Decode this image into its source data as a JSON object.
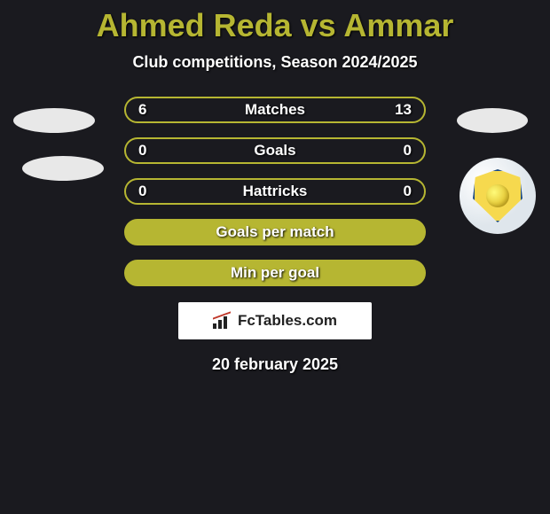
{
  "title": "Ahmed Reda vs Ammar",
  "subtitle": "Club competitions, Season 2024/2025",
  "rows": [
    {
      "label": "Matches",
      "left": "6",
      "right": "13",
      "filled": false
    },
    {
      "label": "Goals",
      "left": "0",
      "right": "0",
      "filled": false
    },
    {
      "label": "Hattricks",
      "left": "0",
      "right": "0",
      "filled": false
    },
    {
      "label": "Goals per match",
      "left": "",
      "right": "",
      "filled": true
    },
    {
      "label": "Min per goal",
      "left": "",
      "right": "",
      "filled": true
    }
  ],
  "branding": "FcTables.com",
  "date": "20 february 2025",
  "colors": {
    "accent": "#b6b632",
    "background": "#1a1a1f",
    "text": "#ffffff",
    "branding_bg": "#ffffff",
    "branding_text": "#222222"
  }
}
